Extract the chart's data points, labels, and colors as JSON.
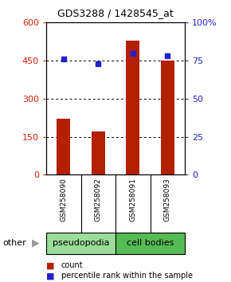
{
  "title": "GDS3288 / 1428545_at",
  "categories": [
    "GSM258090",
    "GSM258092",
    "GSM258091",
    "GSM258093"
  ],
  "count_values": [
    220,
    170,
    530,
    450
  ],
  "percentile_values": [
    76,
    73,
    80,
    78
  ],
  "ylim_left": [
    0,
    600
  ],
  "ylim_right": [
    0,
    100
  ],
  "yticks_left": [
    0,
    150,
    300,
    450,
    600
  ],
  "yticks_right": [
    0,
    25,
    50,
    75,
    100
  ],
  "yticklabels_right": [
    "0",
    "25",
    "50",
    "75",
    "100%"
  ],
  "bar_color": "#B22000",
  "dot_color": "#2222CC",
  "bar_width": 0.4,
  "group_labels": [
    "pseudopodia",
    "cell bodies"
  ],
  "group_colors": [
    "#99DD99",
    "#55BB55"
  ],
  "bg_color": "#ffffff",
  "left_tick_color": "#CC2200",
  "right_tick_color": "#2222CC",
  "gray_box_color": "#C8C8C8",
  "title_fontsize": 9
}
